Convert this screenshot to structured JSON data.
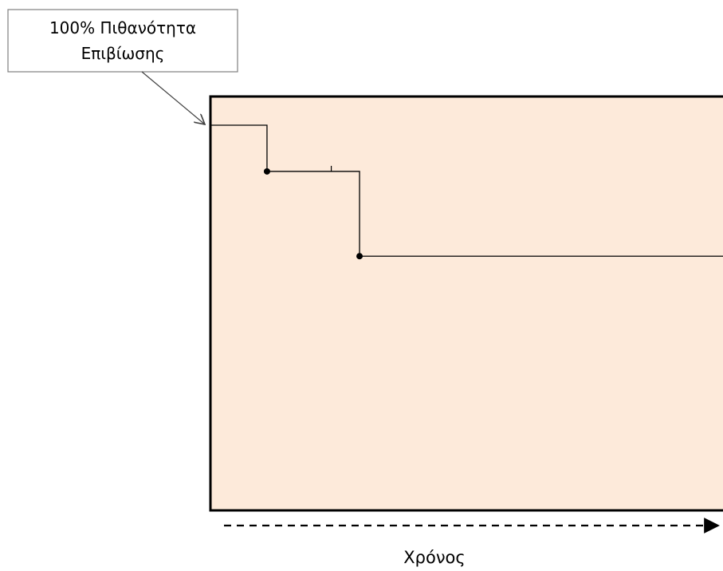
{
  "chart_data": {
    "type": "line",
    "subtype": "step (Kaplan-Meier survival curve)",
    "callout": {
      "lines": [
        "100% Πιθανότητα",
        "Επιβίωσης"
      ]
    },
    "xlabel": "Χρόνος",
    "x_axis_style": "dashed arrow",
    "y_axis_ticks": false,
    "x_axis_ticks": false,
    "grid": false,
    "legend": "none",
    "xlim": [
      0,
      100
    ],
    "ylim": [
      0,
      100
    ],
    "series": [
      {
        "steps": [
          {
            "x": 0,
            "y": 100
          },
          {
            "x": 11,
            "y": 88
          },
          {
            "x": 29,
            "y": 66
          },
          {
            "x": 100,
            "y": 66
          }
        ],
        "events": [
          {
            "x": 11,
            "y": 88
          },
          {
            "x": 29,
            "y": 66
          }
        ],
        "censored": [
          {
            "x": 23.5,
            "y": 88
          }
        ]
      }
    ],
    "colors": {
      "plot_background": "#FDEADA",
      "line": "#000000",
      "frame": "#000000"
    }
  }
}
